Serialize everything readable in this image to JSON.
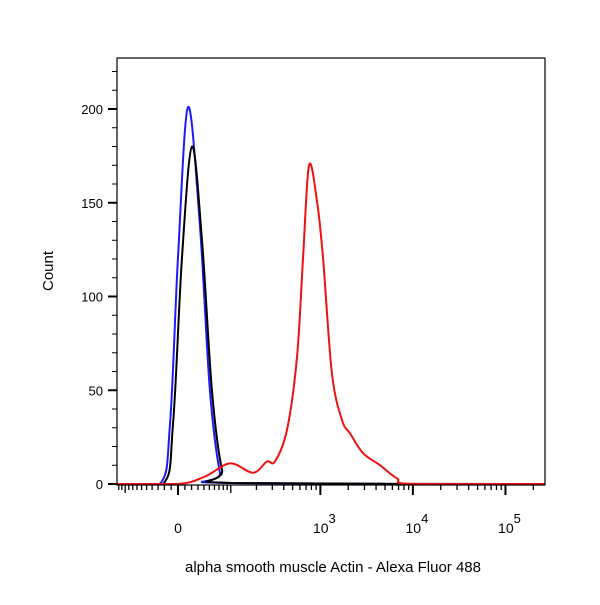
{
  "chart_data": {
    "type": "line",
    "title": "",
    "xlabel": "alpha smooth muscle Actin - Alexa Fluor 488",
    "ylabel": "Count",
    "x_scale": "biexponential",
    "xlim": [
      -127,
      267000
    ],
    "ylim": [
      0,
      227
    ],
    "grid": false,
    "legend": "none",
    "y_ticks": [
      0,
      50,
      100,
      150,
      200
    ],
    "y_tick_labels": [
      "0",
      "50",
      "100",
      "150",
      "200"
    ],
    "x_ticks": [
      0,
      1000,
      10000,
      100000
    ],
    "x_tick_labels": [
      {
        "base": "0",
        "exp": ""
      },
      {
        "base": "10",
        "exp": "3"
      },
      {
        "base": "10",
        "exp": "4"
      },
      {
        "base": "10",
        "exp": "5"
      }
    ],
    "series": [
      {
        "name": "blue",
        "color": "#1a1aff",
        "x": [
          -127,
          -27,
          -11.6,
          0,
          14.6,
          33,
          51,
          72,
          90,
          267000
        ],
        "y": [
          0,
          0,
          32,
          121,
          201,
          139,
          50,
          6,
          0.5,
          0
        ]
      },
      {
        "name": "black",
        "color": "#000000",
        "x": [
          -127,
          -22,
          -7.2,
          5.8,
          20.6,
          36.7,
          55,
          77,
          104,
          267000
        ],
        "y": [
          0,
          0,
          32,
          121,
          180,
          130,
          50,
          7.5,
          0.5,
          0
        ]
      },
      {
        "name": "red",
        "color": "#ee1111",
        "x": [
          -127,
          0,
          42,
          98,
          183,
          262,
          321,
          435,
          559,
          650,
          754,
          919,
          1067,
          1334,
          1717,
          2094,
          2888,
          4414,
          6730,
          10030,
          267000
        ],
        "y": [
          0,
          0,
          4,
          11,
          6,
          12,
          12,
          29,
          68,
          121,
          170,
          151,
          121,
          59,
          34,
          27,
          16.5,
          10,
          3,
          0,
          0
        ]
      }
    ]
  }
}
